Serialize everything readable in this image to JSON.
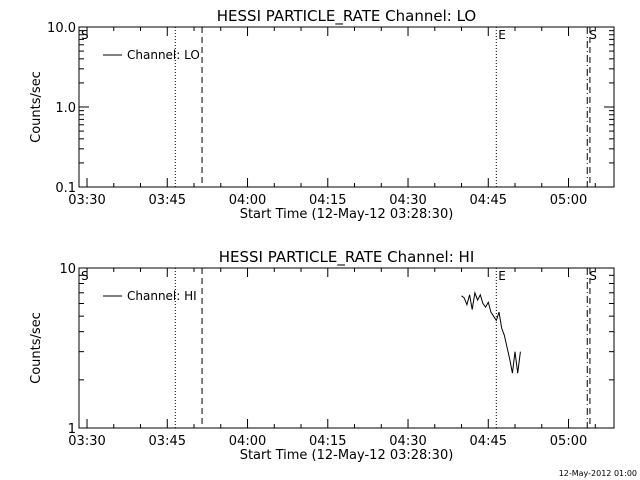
{
  "footer_date": "12-May-2012 01:00",
  "chart_data": [
    {
      "type": "line",
      "title": "HESSI PARTICLE_RATE Channel: LO",
      "xlabel": "Start Time (12-May-12 03:28:30)",
      "ylabel": "Counts/sec",
      "yscale": "log",
      "ylim": [
        0.1,
        10.0
      ],
      "xlim": [
        "03:28:30",
        "05:08:30"
      ],
      "xticks": [
        "03:30",
        "03:45",
        "04:00",
        "04:15",
        "04:30",
        "04:45",
        "05:00"
      ],
      "yticks": [
        "0.1",
        "1.0",
        "10.0"
      ],
      "legend": {
        "placement": "top-left",
        "entries": [
          "Channel: LO"
        ]
      },
      "markers": [
        {
          "label": "S",
          "time": "03:28:30",
          "style": "dotted"
        },
        {
          "label": "",
          "time": "03:46:30",
          "style": "dotted"
        },
        {
          "label": "",
          "time": "03:51:30",
          "style": "dashed"
        },
        {
          "label": "E",
          "time": "04:46:30",
          "style": "dotted"
        },
        {
          "label": "S",
          "time": "05:03:30",
          "style": "dashdot"
        },
        {
          "label": "",
          "time": "05:04:00",
          "style": "dashed"
        }
      ],
      "series": [
        {
          "name": "Channel: LO",
          "x": [],
          "y": []
        }
      ]
    },
    {
      "type": "line",
      "title": "HESSI PARTICLE_RATE Channel: HI",
      "xlabel": "Start Time (12-May-12 03:28:30)",
      "ylabel": "Counts/sec",
      "yscale": "log",
      "ylim": [
        1,
        10
      ],
      "xlim": [
        "03:28:30",
        "05:08:30"
      ],
      "xticks": [
        "03:30",
        "03:45",
        "04:00",
        "04:15",
        "04:30",
        "04:45",
        "05:00"
      ],
      "yticks": [
        "1",
        "10"
      ],
      "legend": {
        "placement": "top-left",
        "entries": [
          "Channel: HI"
        ]
      },
      "markers": [
        {
          "label": "S",
          "time": "03:28:30",
          "style": "dotted"
        },
        {
          "label": "",
          "time": "03:46:30",
          "style": "dotted"
        },
        {
          "label": "",
          "time": "03:51:30",
          "style": "dashed"
        },
        {
          "label": "E",
          "time": "04:46:30",
          "style": "dotted"
        },
        {
          "label": "S",
          "time": "05:03:30",
          "style": "dashdot"
        },
        {
          "label": "",
          "time": "05:04:00",
          "style": "dashed"
        }
      ],
      "series": [
        {
          "name": "Channel: HI",
          "x": [
            "04:40:00",
            "04:40:30",
            "04:41:00",
            "04:41:30",
            "04:42:00",
            "04:42:30",
            "04:43:00",
            "04:43:30",
            "04:44:00",
            "04:44:30",
            "04:45:00",
            "04:45:30",
            "04:46:00",
            "04:46:30",
            "04:47:00",
            "04:47:30",
            "04:48:00",
            "04:48:30",
            "04:49:00",
            "04:49:30",
            "04:50:00",
            "04:50:30",
            "04:51:00"
          ],
          "y": [
            6.7,
            6.5,
            5.9,
            6.8,
            5.5,
            7.0,
            6.3,
            6.8,
            6.0,
            5.7,
            6.1,
            5.3,
            5.0,
            4.7,
            5.3,
            4.2,
            3.8,
            3.2,
            2.7,
            2.2,
            3.0,
            2.2,
            3.0
          ]
        }
      ]
    }
  ]
}
